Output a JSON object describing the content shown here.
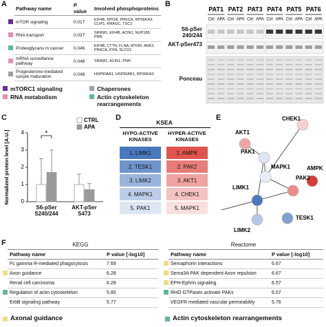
{
  "panels": {
    "A": {
      "label": "A",
      "header": [
        "Pathway name",
        "P value",
        "Involved phosphoproteins"
      ],
      "rows": [
        {
          "color": "#6a2c8e",
          "cells": [
            "mTOR signaling",
            "0.017",
            "EIF4B, MTOR, PRKCA, RPS6KA3, CLIP1, RRAGC, TSC2"
          ]
        },
        {
          "color": "#e58fb3",
          "cells": [
            "RNA transport",
            "0.037",
            "SRRM1, EIF4B, ACIN1, NUP188, PNN"
          ]
        },
        {
          "color": "#5fb89a",
          "cells": [
            "Proteoglycans in cancer",
            "0.046",
            "EIF4B, CTTN, FLNA, MTOR, ANK2, PRKCA, PXN, SLCO1"
          ]
        },
        {
          "color": "#e58fb3",
          "cells": [
            "mRNA surveillance pathway",
            "0.048",
            "SRRM1, ACIN1, PNN"
          ]
        },
        {
          "color": "#a0a0a0",
          "cells": [
            "Progesterone-mediated oocyte maturation",
            "0.048",
            "HSP90AA1, HSP90AB1, RPS6KA3"
          ]
        }
      ],
      "legend": [
        {
          "name": "mTORC1 signaling",
          "color": "#6a2c8e"
        },
        {
          "name": "Chaperones",
          "color": "#a0a0a0"
        },
        {
          "name": "RNA metabolism",
          "color": "#e58fb3"
        },
        {
          "name": "Actin cytoskeleton rearrangements",
          "color": "#5fb89a"
        }
      ]
    },
    "B": {
      "label": "B",
      "patients": [
        "PAT1",
        "PAT2",
        "PAT3",
        "PAT4",
        "PAT5",
        "PAT6"
      ],
      "conditions": [
        "Ctrl",
        "APA"
      ],
      "rows": [
        "S6-pSer 240/244",
        "AKT-pSer473",
        "Ponceau"
      ]
    },
    "D": {
      "label": "D",
      "title": "KSEA",
      "columns": [
        {
          "name": "HYPO-ACTIVE KINASES",
          "items": [
            "1. LIMK1",
            "2. TESK1",
            "3. LIMK2",
            "4. MAPK1",
            "5. PAK1"
          ],
          "colors": [
            "#4a78bd",
            "#6f94cc",
            "#9ab4dc",
            "#bccde8",
            "#dde6f3"
          ]
        },
        {
          "name": "HYPER-ACTIVE KINASES",
          "items": [
            "1. AMPK",
            "2. PAK2",
            "3. AKT1",
            "4. CHEK1",
            "5. MAPK1"
          ],
          "colors": [
            "#e0544f",
            "#e77d78",
            "#eea3a0",
            "#f4c2c0",
            "#f9dfde"
          ]
        }
      ]
    },
    "E": {
      "label": "E",
      "nodes": [
        {
          "label": "CHEK1",
          "color": "#f6d0d0"
        },
        {
          "label": "AKT1",
          "color": "#efa5a5"
        },
        {
          "label": "PAK1",
          "color": "#dde6f3"
        },
        {
          "label": "MAPK1",
          "color": "#e8eef7"
        },
        {
          "label": "AMPK",
          "color": "#d83a35"
        },
        {
          "label": "LIMK1",
          "color": "#4a78bd"
        },
        {
          "label": "PAK2",
          "color": "#eb8c88"
        },
        {
          "label": "LIMK2",
          "color": "#b4c8e6"
        },
        {
          "label": "TESK1",
          "color": "#7ea0d3"
        }
      ]
    },
    "F": {
      "label": "F",
      "tables": [
        {
          "title": "KEGG",
          "header": [
            "Pathway name",
            "P value [-log10]"
          ],
          "rows": [
            {
              "color": null,
              "cells": [
                "Fc gamma R-mediated phagocytosis",
                "7.69"
              ]
            },
            {
              "color": "#f0dc82",
              "cells": [
                "Axon guidance",
                "6.28"
              ]
            },
            {
              "color": null,
              "cells": [
                "Renal cell carcinoma",
                "6.28"
              ]
            },
            {
              "color": "#5fb89a",
              "cells": [
                "Regulation of actin cytoskeleton",
                "5.85"
              ]
            },
            {
              "color": null,
              "cells": [
                "ErbB signaling pathway",
                "5.77"
              ]
            }
          ]
        },
        {
          "title": "Reactome",
          "header": [
            "Pathway name",
            "P value [-log10]"
          ],
          "rows": [
            {
              "color": "#f0dc82",
              "cells": [
                "Semaphorin interactions",
                "6.67"
              ]
            },
            {
              "color": "#f0dc82",
              "cells": [
                "Sema3A PAK dependent Axon repulsion",
                "6.67"
              ]
            },
            {
              "color": "#f0dc82",
              "cells": [
                "EPH-Ephrin signaling",
                "6.57"
              ]
            },
            {
              "color": "#5fb89a",
              "cells": [
                "RHO GTPases activate PAKs",
                "6.57"
              ]
            },
            {
              "color": null,
              "cells": [
                "VEGFR mediated vascular permeability",
                "5.76"
              ]
            }
          ]
        }
      ],
      "legend": [
        {
          "name": "Axonal guidance",
          "color": "#f0dc82"
        },
        {
          "name": "Actin cytoskeleton rearrangements",
          "color": "#5fb89a"
        }
      ]
    }
  },
  "chart_data": {
    "type": "bar",
    "panel_label": "C",
    "ylabel": "Normalized protein level [A.U.]",
    "categories": [
      "S6-pSer S240/244",
      "AKT-pSer S473"
    ],
    "series": [
      {
        "name": "CTRL",
        "color": "#ffffff",
        "values": [
          1,
          1
        ],
        "errors": [
          1.5,
          0.6
        ]
      },
      {
        "name": "APA",
        "color": "#9a9a9a",
        "values": [
          1.7,
          0.7
        ],
        "errors": [
          1.3,
          0.35
        ]
      }
    ],
    "ylim": [
      0,
      4
    ],
    "yticks": [
      0,
      1,
      2,
      3,
      4
    ],
    "annotation": "*"
  }
}
